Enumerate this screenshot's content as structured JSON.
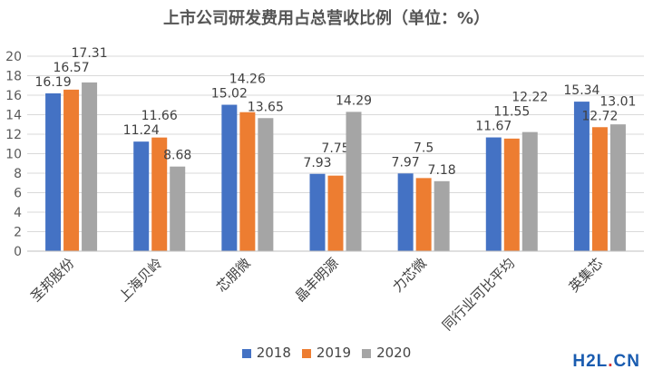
{
  "chart_data": {
    "type": "bar",
    "title": "上市公司研发费用占总营收比例（单位：%）",
    "categories": [
      "圣邦股份",
      "上海贝岭",
      "芯朋微",
      "晶丰明源",
      "力芯微",
      "同行业可比平均",
      "英集芯"
    ],
    "series": [
      {
        "name": "2018",
        "color": "#4472c4",
        "values": [
          16.19,
          11.24,
          15.02,
          7.93,
          7.97,
          11.67,
          15.34
        ],
        "labels": [
          "16.19",
          "11.24",
          "15.02",
          "7.93",
          "7.97",
          "11.67",
          "15.34"
        ]
      },
      {
        "name": "2019",
        "color": "#ed7d31",
        "values": [
          16.57,
          11.66,
          14.26,
          7.75,
          7.5,
          11.55,
          12.72
        ],
        "labels": [
          "16.57",
          "11.66",
          "14.26",
          "7.75",
          "7.5",
          "11.55",
          "12.72"
        ]
      },
      {
        "name": "2020",
        "color": "#a5a5a5",
        "values": [
          17.31,
          8.68,
          13.65,
          14.29,
          7.18,
          12.22,
          13.01
        ],
        "labels": [
          "17.31",
          "8.68",
          "13.65",
          "14.29",
          "7.18",
          "12.22",
          "13.01"
        ]
      }
    ],
    "ylim": [
      0,
      20
    ],
    "yticks": [
      "0",
      "2",
      "4",
      "6",
      "8",
      "10",
      "12",
      "14",
      "16",
      "18",
      "20"
    ],
    "grid": true,
    "legend": "bottom"
  },
  "watermark": {
    "h2l": "H2L",
    "dot": ".",
    "cn": "CN"
  }
}
